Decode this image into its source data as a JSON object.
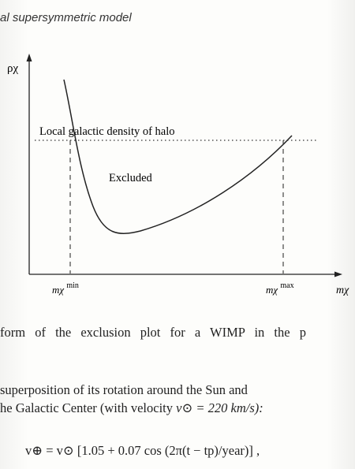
{
  "header": {
    "title": "al supersymmetric model"
  },
  "figure": {
    "y_axis_label": "ρχ",
    "x_axis_label": "mχ",
    "line_label": "Local galactic density of halo",
    "region_label": "Excluded",
    "min_label_base": "mχ",
    "min_label_sup": "min",
    "max_label_base": "mχ",
    "max_label_sup": "max"
  },
  "text": {
    "caption": "form of the exclusion plot for a WIMP in the p",
    "para_line1": "superposition of its rotation around the Sun and",
    "para_line2": "he Galactic Center (with velocity",
    "para_line2_math": "v⊙ = 220 km/s):",
    "equation": "v⊕ = v⊙ [1.05 + 0.07 cos (2π(t − tp)/year)] ,"
  }
}
